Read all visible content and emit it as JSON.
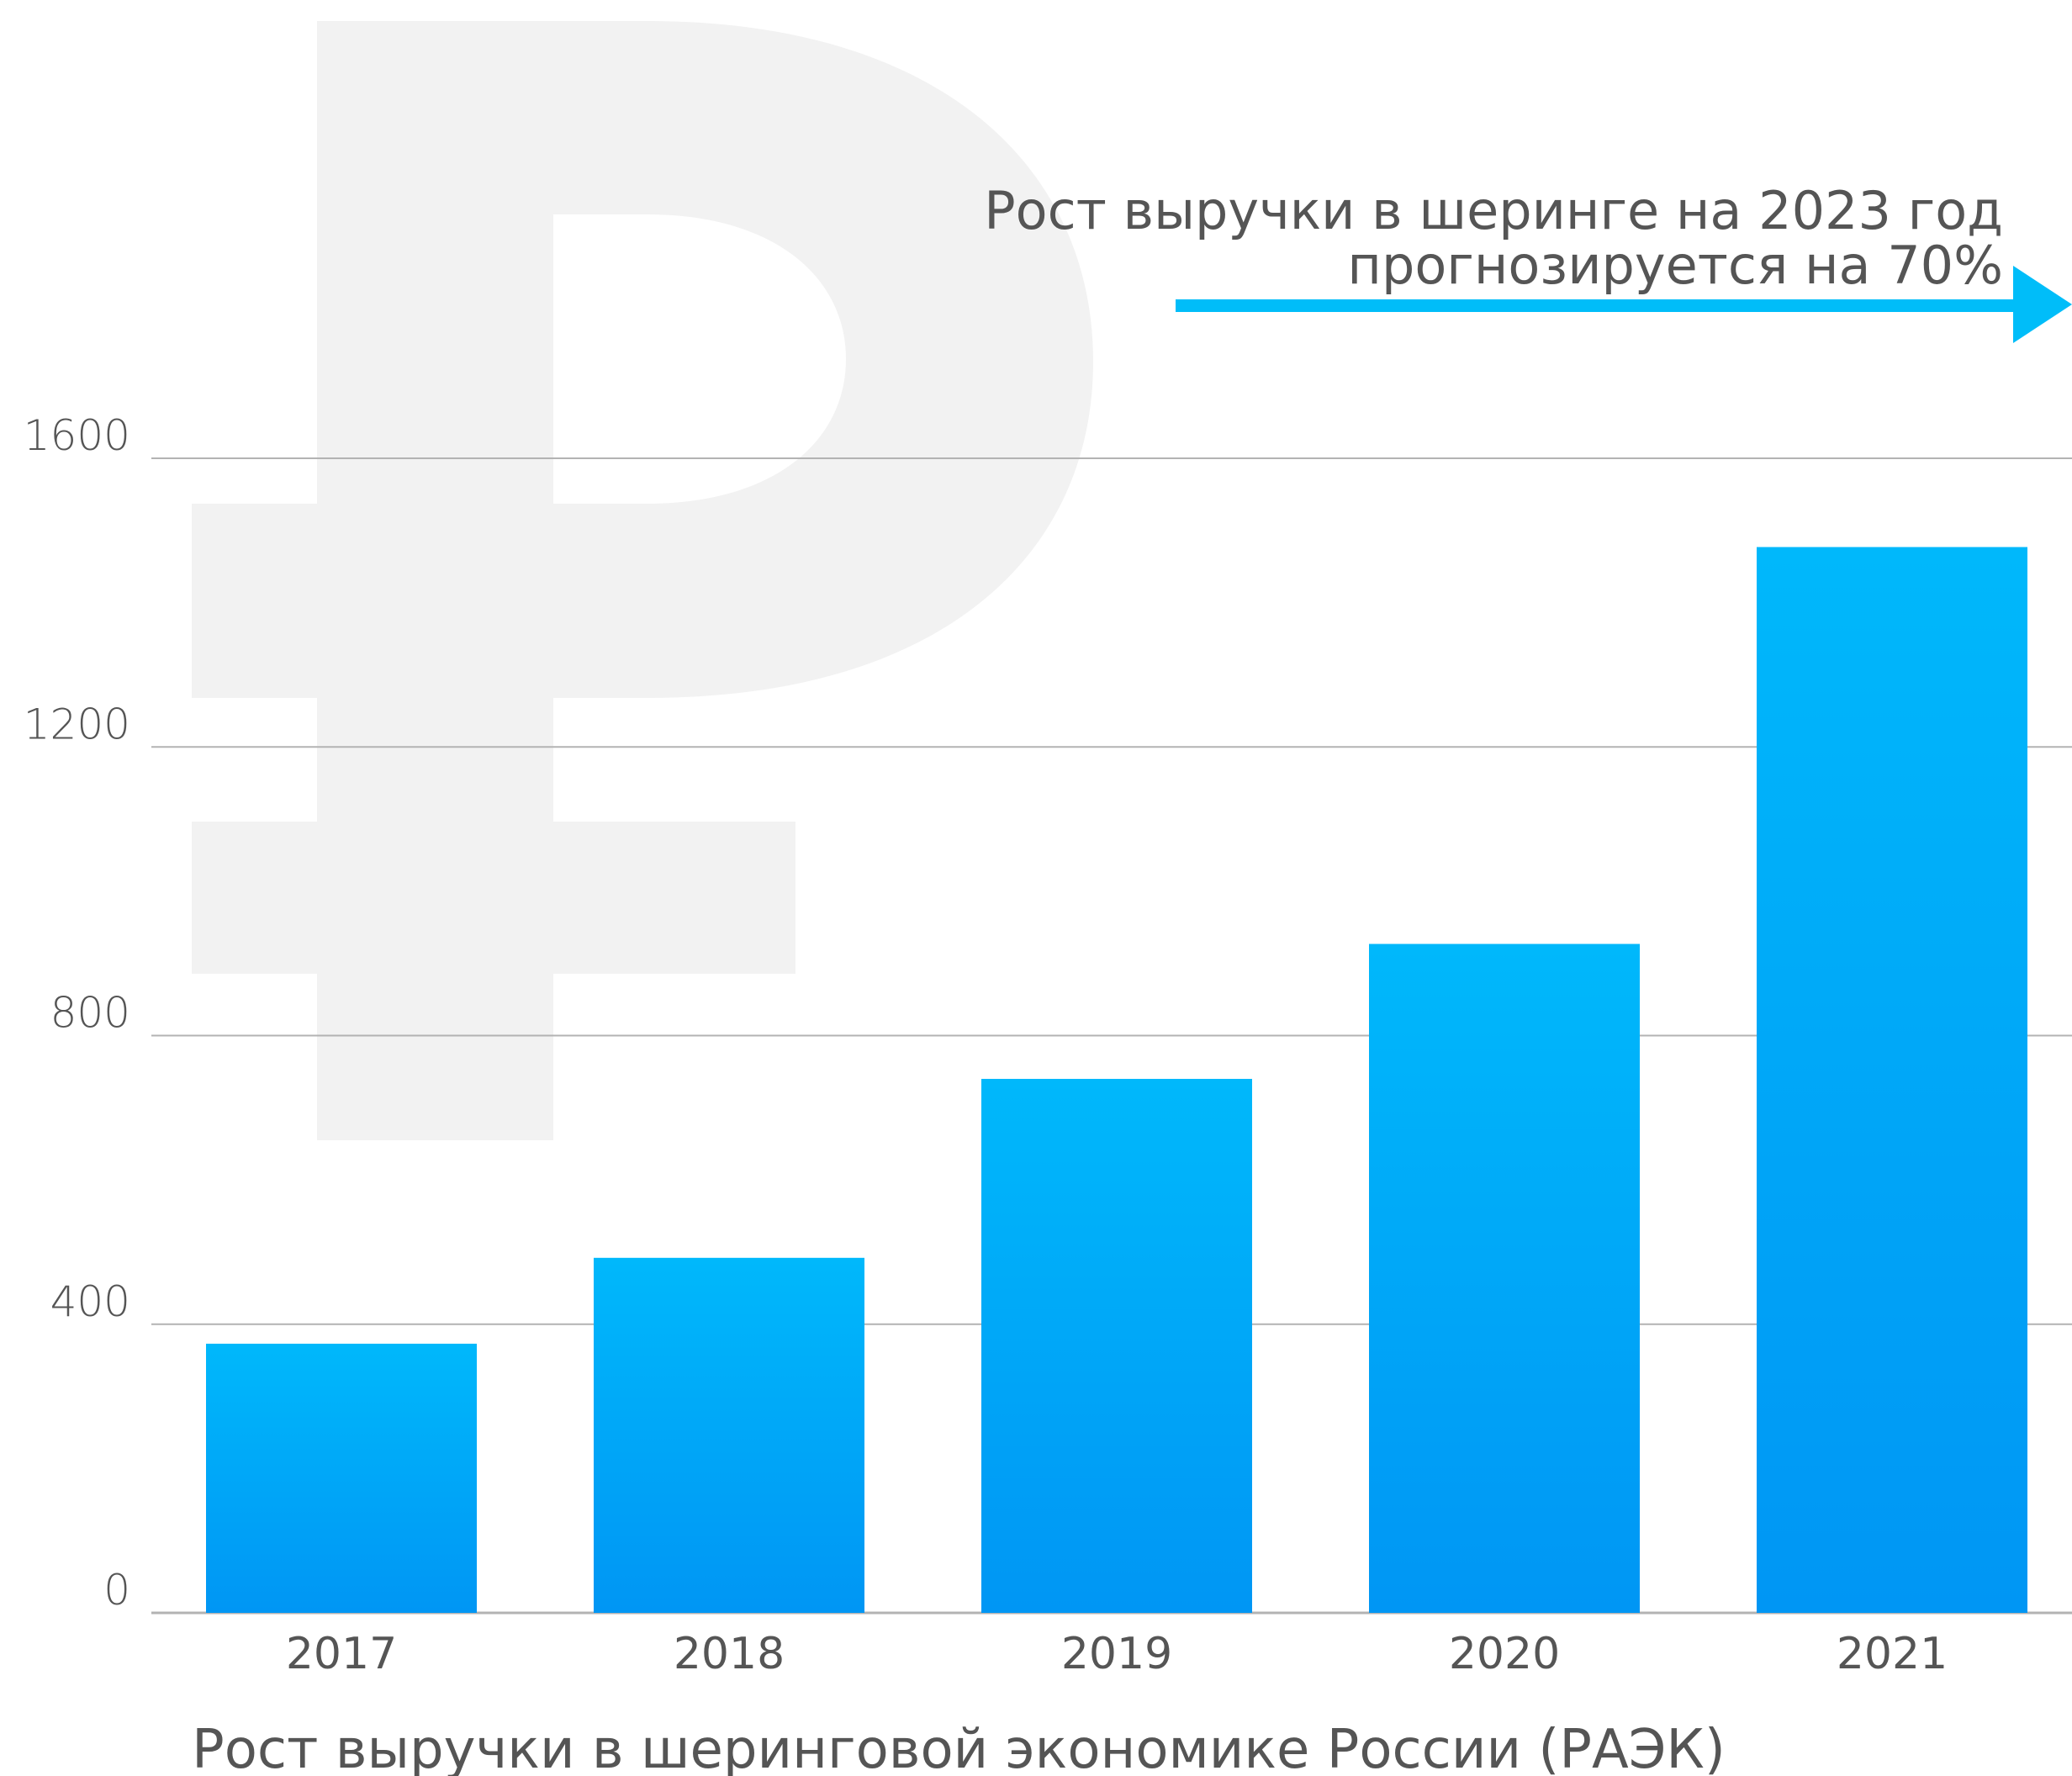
{
  "chart_data": {
    "type": "bar",
    "categories": [
      "2017",
      "2018",
      "2019",
      "2020",
      "2021"
    ],
    "values": [
      373,
      492,
      740,
      927,
      1477
    ],
    "yticks": [
      "0",
      "400",
      "800",
      "1200",
      "1600"
    ],
    "ylim": [
      0,
      1600
    ],
    "grid": true,
    "legend": "none",
    "annotation": {
      "line1": "Рост выручки в шеринге на 2023 год",
      "line2": "прогнозируется на 70%"
    },
    "caption": "Рост выручки в шеринговой экономике России (РАЭК)",
    "background_symbol": "₽",
    "colors": {
      "bar_top": "#00b8fb",
      "bar_bottom": "#0096f4",
      "arrow": "#00bdf9",
      "grid": "#b3b3b3",
      "text": "#555555",
      "watermark": "#f2f2f2"
    }
  }
}
